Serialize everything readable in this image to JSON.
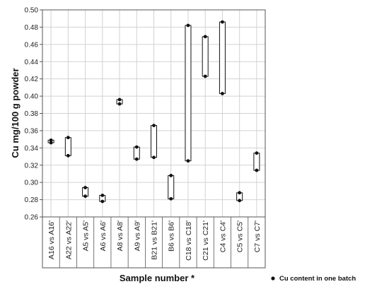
{
  "chart_data": {
    "type": "range-bar",
    "ylabel": "Cu mg/100 g powder",
    "xlabel": "Sample number *",
    "ylim": [
      0.26,
      0.5
    ],
    "yticks": [
      "0.26",
      "0.28",
      "0.30",
      "0.32",
      "0.34",
      "0.36",
      "0.38",
      "0.40",
      "0.42",
      "0.44",
      "0.46",
      "0.48",
      "0.50"
    ],
    "grid": true,
    "legend": {
      "position": "bottom-right",
      "label": "Cu content in one batch"
    },
    "categories": [
      "A16 vs A16'",
      "A22 vs A22'",
      "A5 vs A5'",
      "A6 vs A6'",
      "A8 vs A8'",
      "A9 vs A9'",
      "B21 vs B21'",
      "B6 vs B6'",
      "C18 vs C18'",
      "C21 vs C21'",
      "C4 vs C4'",
      "C5 vs C5'",
      "C7 vs C7'"
    ],
    "series": [
      {
        "name": "Cu content in one batch",
        "values": [
          [
            0.346,
            0.349
          ],
          [
            0.331,
            0.352
          ],
          [
            0.284,
            0.294
          ],
          [
            0.278,
            0.285
          ],
          [
            0.391,
            0.396
          ],
          [
            0.327,
            0.341
          ],
          [
            0.329,
            0.366
          ],
          [
            0.281,
            0.308
          ],
          [
            0.325,
            0.482
          ],
          [
            0.423,
            0.469
          ],
          [
            0.403,
            0.486
          ],
          [
            0.279,
            0.288
          ],
          [
            0.314,
            0.334
          ]
        ]
      }
    ]
  }
}
